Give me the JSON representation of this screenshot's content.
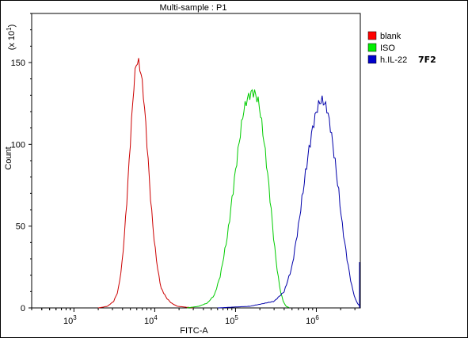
{
  "chart_data": {
    "type": "line",
    "title": "Multi-sample : P1",
    "xlabel": "FITC-A",
    "ylabel": "Count",
    "y_multiplier": "(x 10",
    "y_multiplier_exp": "1",
    "y_multiplier_close": ")",
    "x_scale": "log",
    "xlim": [
      300,
      3500000
    ],
    "ylim": [
      0,
      180
    ],
    "x_ticks": [
      {
        "value": 1000,
        "base": "10",
        "exp": "3"
      },
      {
        "value": 10000,
        "base": "10",
        "exp": "4"
      },
      {
        "value": 100000,
        "base": "10",
        "exp": "5"
      },
      {
        "value": 1000000,
        "base": "10",
        "exp": "6"
      }
    ],
    "y_ticks": [
      0,
      50,
      100,
      150
    ],
    "legend": {
      "placement": "top-right",
      "extra_label": "7F2",
      "entries": [
        {
          "name": "blank",
          "color": "#ff0000"
        },
        {
          "name": "ISO",
          "color": "#00ee00"
        },
        {
          "name": "h.IL-22",
          "color": "#0000cc"
        }
      ]
    },
    "series": [
      {
        "name": "blank",
        "color": "#cc0000",
        "points": [
          [
            2000,
            0
          ],
          [
            2600,
            1
          ],
          [
            3100,
            4
          ],
          [
            3500,
            10
          ],
          [
            3900,
            25
          ],
          [
            4300,
            50
          ],
          [
            4700,
            80
          ],
          [
            5100,
            110
          ],
          [
            5500,
            135
          ],
          [
            5800,
            147
          ],
          [
            6000,
            151
          ],
          [
            6300,
            150
          ],
          [
            6700,
            145
          ],
          [
            7200,
            132
          ],
          [
            7800,
            110
          ],
          [
            8400,
            85
          ],
          [
            9100,
            60
          ],
          [
            10000,
            38
          ],
          [
            11000,
            22
          ],
          [
            12000,
            12
          ],
          [
            14000,
            6
          ],
          [
            16000,
            3
          ],
          [
            19000,
            1
          ],
          [
            24000,
            0.5
          ],
          [
            30000,
            0
          ]
        ]
      },
      {
        "name": "ISO",
        "color": "#00cc00",
        "points": [
          [
            25000,
            0
          ],
          [
            35000,
            1
          ],
          [
            45000,
            3
          ],
          [
            55000,
            8
          ],
          [
            65000,
            20
          ],
          [
            80000,
            45
          ],
          [
            95000,
            75
          ],
          [
            110000,
            100
          ],
          [
            125000,
            120
          ],
          [
            140000,
            128
          ],
          [
            160000,
            132
          ],
          [
            175000,
            131
          ],
          [
            195000,
            125
          ],
          [
            215000,
            110
          ],
          [
            240000,
            90
          ],
          [
            270000,
            65
          ],
          [
            300000,
            40
          ],
          [
            330000,
            22
          ],
          [
            360000,
            10
          ],
          [
            390000,
            4
          ],
          [
            420000,
            1
          ],
          [
            470000,
            0
          ]
        ]
      },
      {
        "name": "h.IL-22",
        "color": "#0000aa",
        "points": [
          [
            60000,
            0
          ],
          [
            150000,
            1
          ],
          [
            300000,
            4
          ],
          [
            400000,
            10
          ],
          [
            500000,
            25
          ],
          [
            600000,
            50
          ],
          [
            700000,
            75
          ],
          [
            800000,
            95
          ],
          [
            900000,
            110
          ],
          [
            1000000,
            120
          ],
          [
            1100000,
            126
          ],
          [
            1200000,
            127
          ],
          [
            1350000,
            122
          ],
          [
            1500000,
            110
          ],
          [
            1700000,
            90
          ],
          [
            1900000,
            70
          ],
          [
            2100000,
            50
          ],
          [
            2400000,
            30
          ],
          [
            2700000,
            15
          ],
          [
            3000000,
            6
          ],
          [
            3300000,
            2
          ],
          [
            3500000,
            1
          ]
        ]
      }
    ]
  }
}
